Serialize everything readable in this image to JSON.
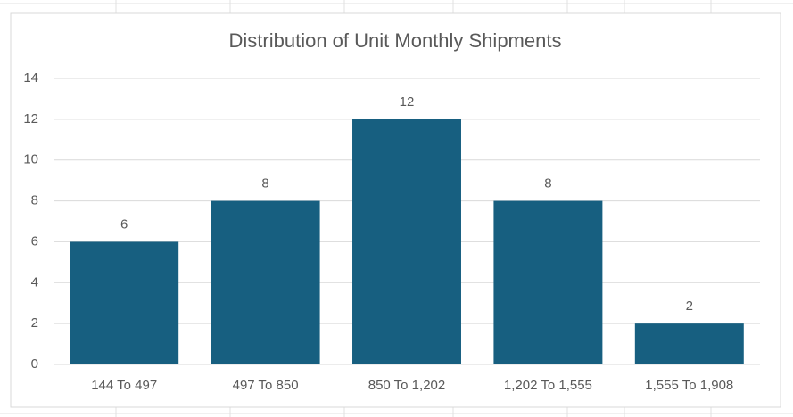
{
  "chart_data": {
    "type": "bar",
    "title": "Distribution of Unit Monthly Shipments",
    "categories": [
      "144 To 497",
      "497 To 850",
      "850 To 1,202",
      "1,202 To 1,555",
      "1,555 To 1,908"
    ],
    "values": [
      6,
      8,
      12,
      8,
      2
    ],
    "color": "#175f80",
    "ylim": [
      0,
      14
    ],
    "yticks": [
      0,
      2,
      4,
      6,
      8,
      10,
      12,
      14
    ],
    "grid": true
  }
}
